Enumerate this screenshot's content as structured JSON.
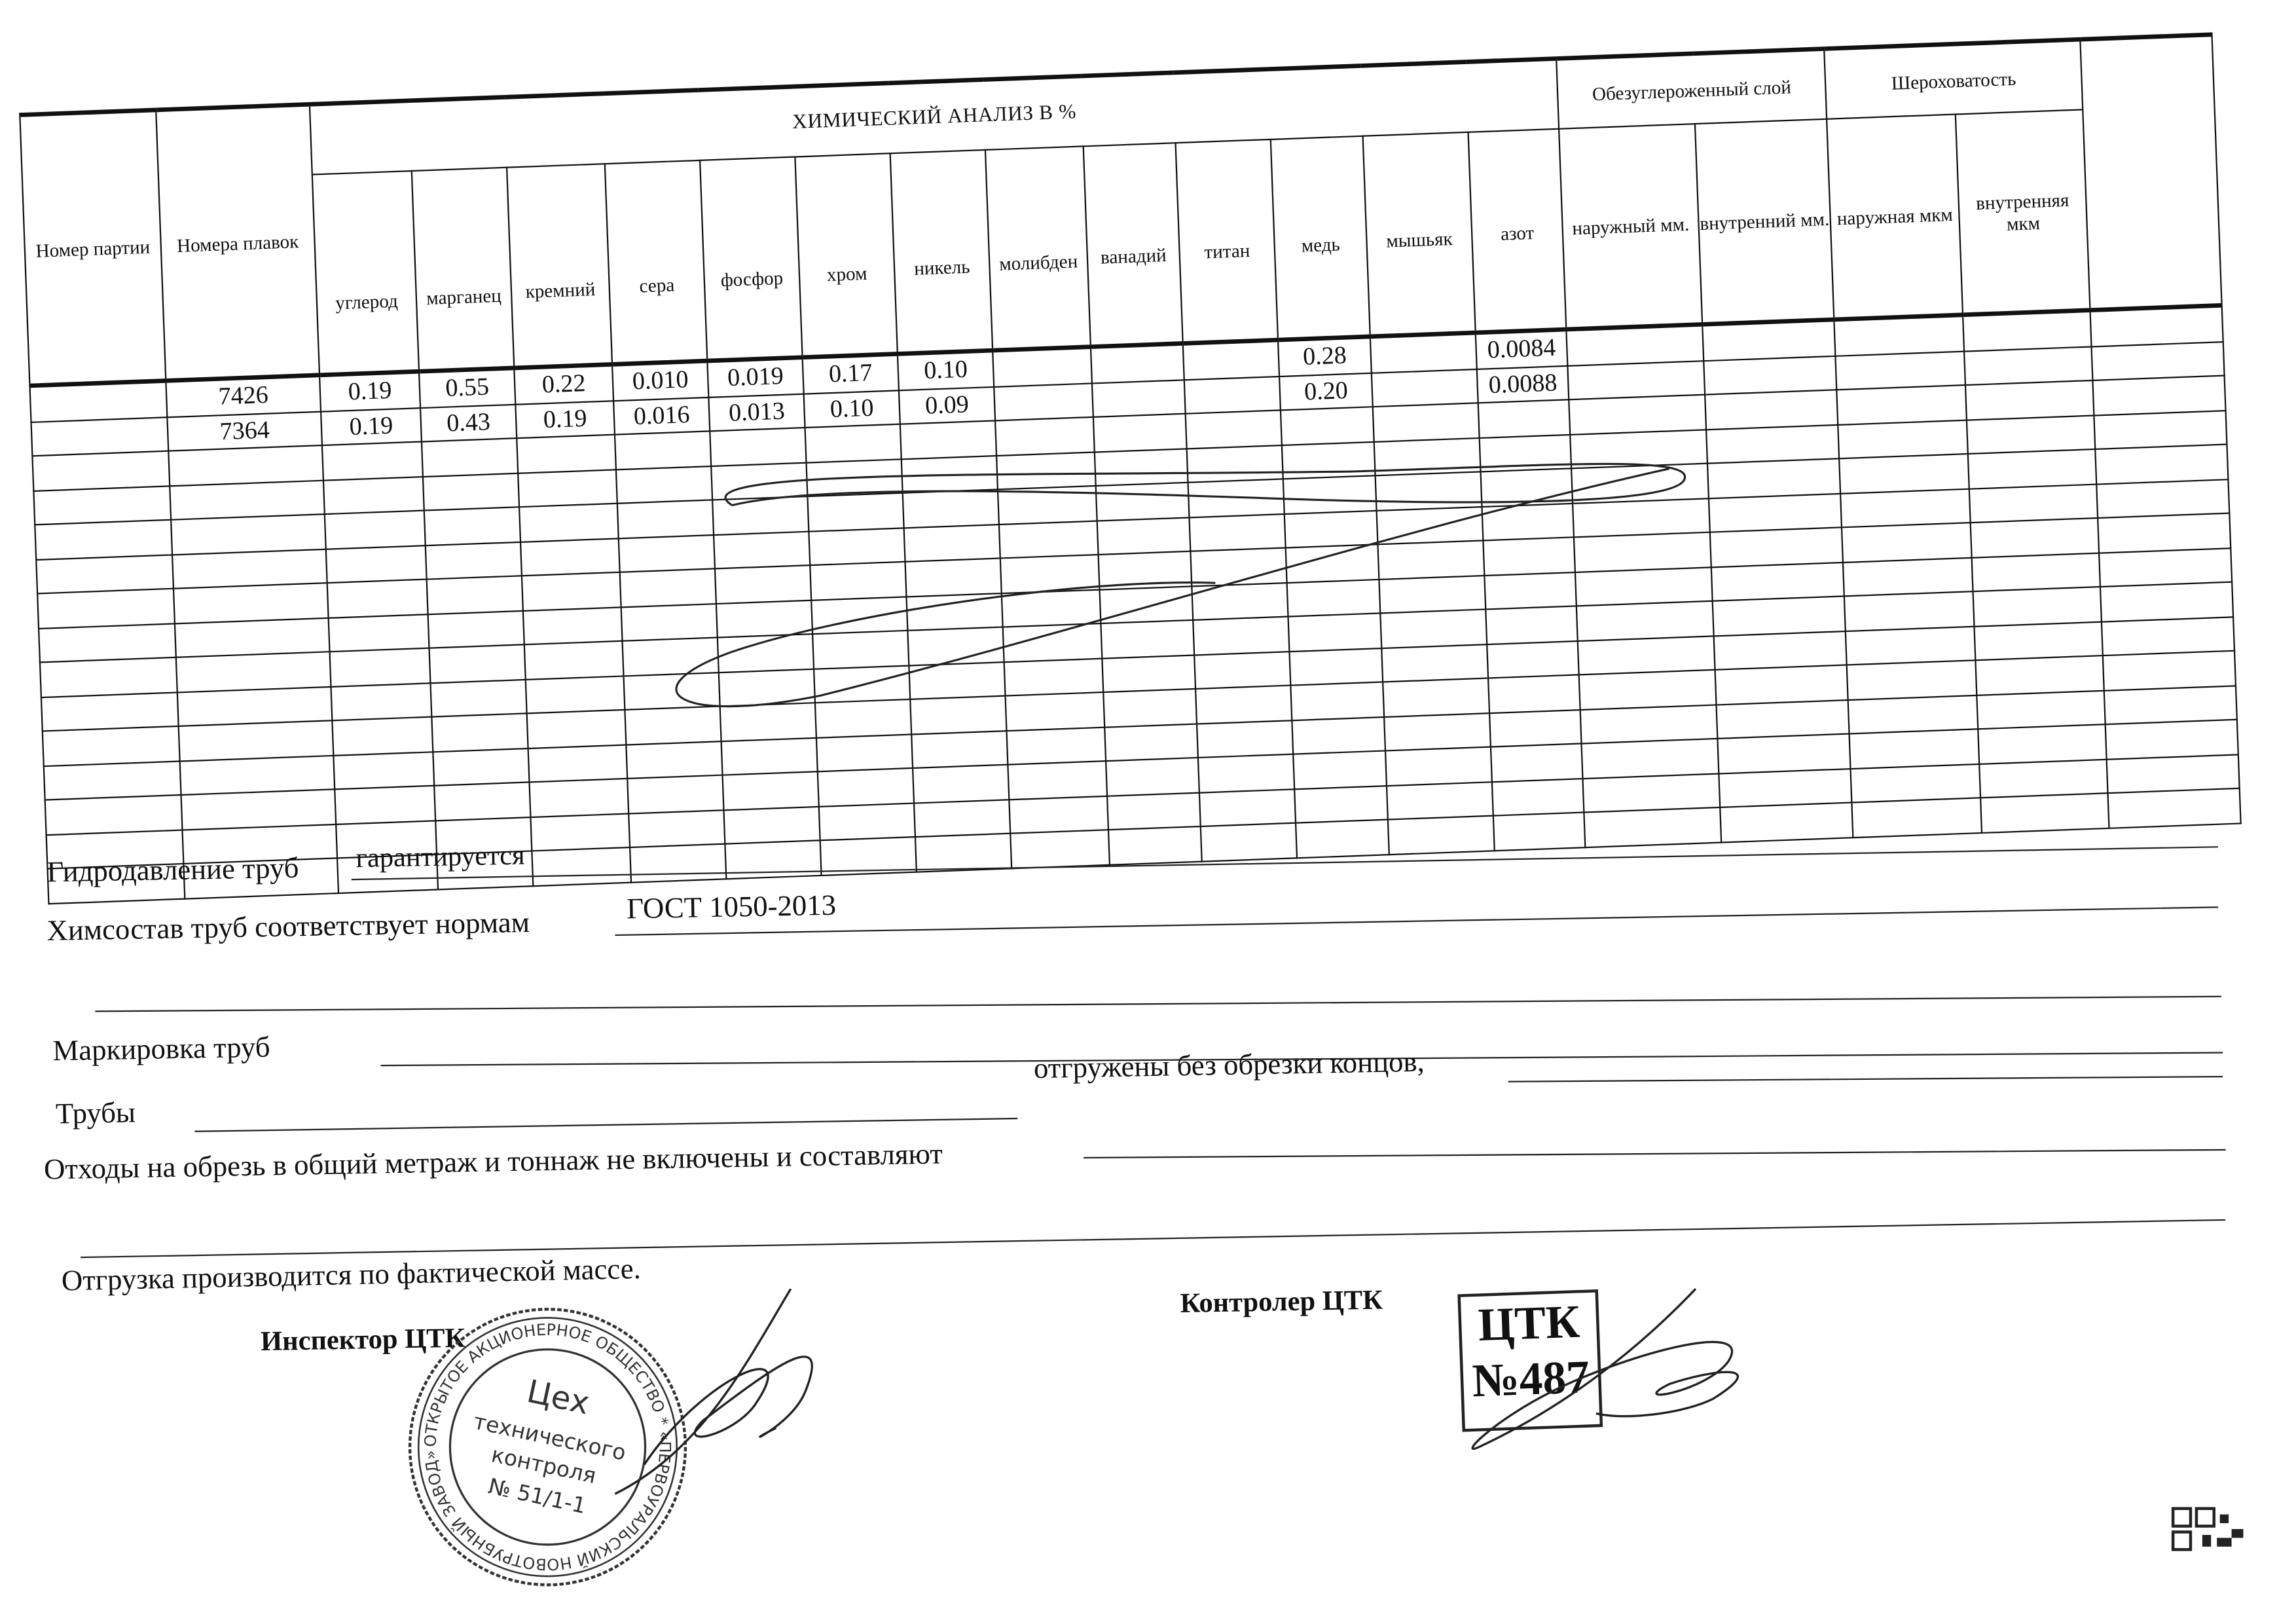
{
  "table": {
    "header": {
      "party": "Номер партии",
      "heats": "Номера плавок",
      "chem_title": "ХИМИЧЕСКИЙ АНАЛИЗ  В   %",
      "elements": [
        "углерод",
        "марганец",
        "кремний",
        "сера",
        "фосфор",
        "хром",
        "никель",
        "молибден",
        "ванадий",
        "титан",
        "медь",
        "мышьяк",
        "азот"
      ],
      "decarb_title": "Обезуглероженный слой",
      "decarb_sub": [
        "наружный мм.",
        "внутренний мм."
      ],
      "rough_title": "Шероховатость",
      "rough_sub": [
        "наружная мкм",
        "внутренняя мкм"
      ]
    },
    "rows": [
      {
        "party": "",
        "heat": "7426",
        "values": [
          "0.19",
          "0.55",
          "0.22",
          "0.010",
          "0.019",
          "0.17",
          "0.10",
          "",
          "",
          "",
          "0.28",
          "",
          "0.0084"
        ]
      },
      {
        "party": "",
        "heat": "7364",
        "values": [
          "0.19",
          "0.43",
          "0.19",
          "0.016",
          "0.013",
          "0.10",
          "0.09",
          "",
          "",
          "",
          "0.20",
          "",
          "0.0088"
        ]
      }
    ],
    "empty_rows": 13
  },
  "form": {
    "hydro_label": "Гидродавление труб",
    "hydro_value": "гарантируется",
    "chem_label": "Химсостав труб соответствует нормам",
    "chem_value": "ГОСТ 1050-2013",
    "marking_label": "Маркировка труб",
    "pipes_label": "Трубы",
    "pipes_mid": "отгружены без обрезки концов,",
    "waste_label": "Отходы на обрезь в общий метраж и тоннаж не включены и составляют",
    "shipment": "Отгрузка производится по фактической массе.",
    "inspector_label": "Инспектор  ЦТК",
    "controller_label": "Контролер ЦТК"
  },
  "stamp": {
    "ring_text": "ОТКРЫТОЕ АКЦИОНЕРНОЕ ОБЩЕСТВО * «ПЕРВОУРАЛЬСКИЙ НОВОТРУБНЫЙ ЗАВОД» *",
    "center_lines": [
      "Цех",
      "технического",
      "контроля",
      "№ 51/1-1"
    ]
  },
  "ctk_stamp": {
    "line1": "ЦТК",
    "line2": "№487"
  }
}
